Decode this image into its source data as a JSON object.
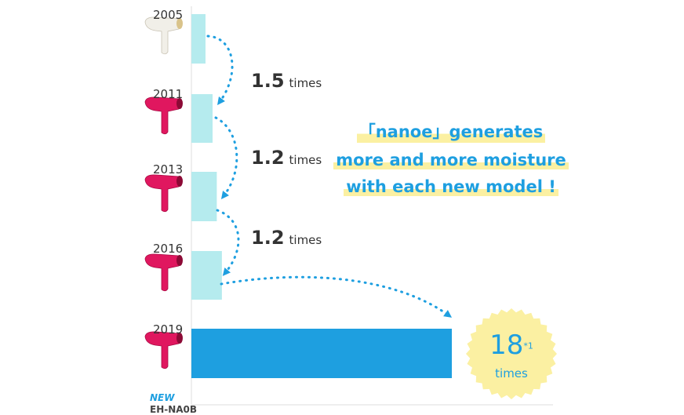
{
  "colors": {
    "bar_small": "#b5ebee",
    "bar_big": "#1e9fe0",
    "accent": "#1e9fe0",
    "badge": "#fbf0a2",
    "dryer_pink": "#e0175f",
    "dryer_white": "#f1efe8"
  },
  "headline": [
    "「nanoe」generates",
    "more and more moisture",
    "with each new model !"
  ],
  "badge": {
    "value": "18",
    "note": "*1",
    "unit": "times"
  },
  "new_label": "NEW",
  "model_label": "EH-NA0B",
  "multipliers": [
    {
      "value": "1.5",
      "unit": "times"
    },
    {
      "value": "1.2",
      "unit": "times"
    },
    {
      "value": "1.2",
      "unit": "times"
    }
  ],
  "chart_data": {
    "type": "bar",
    "orientation": "horizontal",
    "categories": [
      "2005",
      "2011",
      "2013",
      "2016",
      "2019"
    ],
    "values": [
      1,
      1.5,
      1.8,
      2.16,
      18
    ],
    "icons": [
      "hair-dryer-white-icon",
      "hair-dryer-pink-icon",
      "hair-dryer-pink-icon",
      "hair-dryer-pink-icon",
      "hair-dryer-pink-icon"
    ]
  }
}
